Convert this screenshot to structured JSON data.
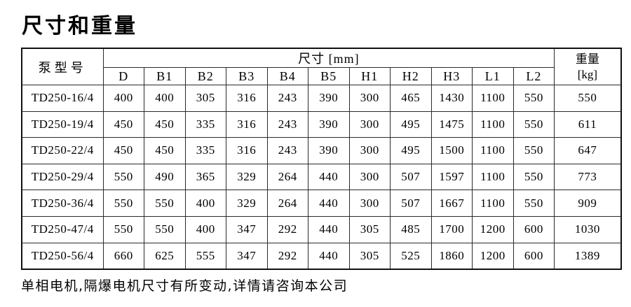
{
  "page": {
    "title": "尺寸和重量",
    "footnote": "单相电机,隔爆电机尺寸有所变动,详情请咨询本公司"
  },
  "colors": {
    "background": "#ffffff",
    "text": "#000000",
    "table_border": "#2a2a2a",
    "table_outer_border": "#111111"
  },
  "table": {
    "model_header": "泵型号",
    "dims_header": "尺寸 [mm]",
    "weight_header_line1": "重量",
    "weight_header_line2": "[kg]",
    "dim_columns": [
      "D",
      "B1",
      "B2",
      "B3",
      "B4",
      "B5",
      "H1",
      "H2",
      "H3",
      "L1",
      "L2"
    ],
    "rows": [
      {
        "model": "TD250-16/4",
        "dims": [
          400,
          400,
          305,
          316,
          243,
          390,
          300,
          465,
          1430,
          1100,
          550
        ],
        "weight": 550
      },
      {
        "model": "TD250-19/4",
        "dims": [
          450,
          450,
          335,
          316,
          243,
          390,
          300,
          495,
          1475,
          1100,
          550
        ],
        "weight": 611
      },
      {
        "model": "TD250-22/4",
        "dims": [
          450,
          450,
          335,
          316,
          243,
          390,
          300,
          495,
          1500,
          1100,
          550
        ],
        "weight": 647
      },
      {
        "model": "TD250-29/4",
        "dims": [
          550,
          490,
          365,
          329,
          264,
          440,
          300,
          507,
          1597,
          1100,
          550
        ],
        "weight": 773
      },
      {
        "model": "TD250-36/4",
        "dims": [
          550,
          550,
          400,
          329,
          264,
          440,
          300,
          507,
          1667,
          1100,
          550
        ],
        "weight": 909
      },
      {
        "model": "TD250-47/4",
        "dims": [
          550,
          550,
          400,
          347,
          292,
          440,
          305,
          485,
          1700,
          1200,
          600
        ],
        "weight": 1030
      },
      {
        "model": "TD250-56/4",
        "dims": [
          660,
          625,
          555,
          347,
          292,
          440,
          305,
          525,
          1860,
          1200,
          600
        ],
        "weight": 1389
      }
    ]
  }
}
